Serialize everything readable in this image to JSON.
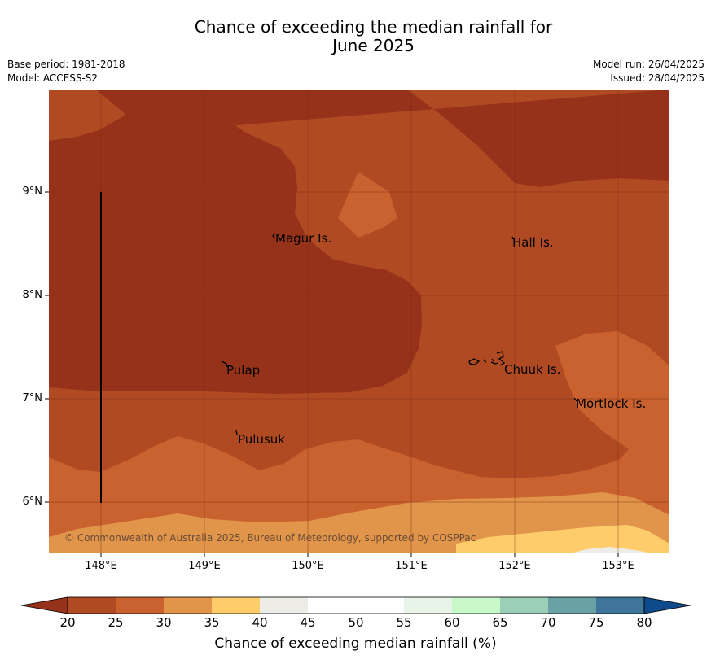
{
  "title": {
    "line1": "Chance of exceeding the median rainfall for",
    "line2": "June 2025"
  },
  "meta": {
    "base_period": "Base period: 1981-2018",
    "model": "Model: ACCESS-S2",
    "model_run": "Model run: 26/04/2025",
    "issued": "Issued: 28/04/2025"
  },
  "axes": {
    "lat_ticks": [
      "9°N",
      "8°N",
      "7°N",
      "6°N"
    ],
    "lon_ticks": [
      "148°E",
      "149°E",
      "150°E",
      "151°E",
      "152°E",
      "153°E"
    ]
  },
  "places": {
    "magur": "Magur Is.",
    "hall": "Hall Is.",
    "pulap": "Pulap",
    "chuuk": "Chuuk Is.",
    "mortlock": "Mortlock Is.",
    "pulusuk": "Pulusuk"
  },
  "copyright": "© Commonwealth of Australia 2025, Bureau of Meteorology, supported by COSPPac",
  "colorbar": {
    "label": "Chance of exceeding median rainfall (%)",
    "ticks": [
      "20",
      "25",
      "30",
      "35",
      "40",
      "45",
      "50",
      "55",
      "60",
      "65",
      "70",
      "75",
      "80"
    ],
    "colors": [
      "#b04a23",
      "#c9622f",
      "#e0954a",
      "#fecc6a",
      "#eeece6",
      "#ffffff",
      "#ffffff",
      "#e9f4e8",
      "#c8f8c8",
      "#9ccfb8",
      "#6aa1a4",
      "#3f7598"
    ],
    "under_color": "#963219",
    "over_color": "#0f4a8a"
  },
  "palette": {
    "darkest": "#963219",
    "dark": "#b04a23",
    "mid": "#c9622f",
    "light": "#e0954a",
    "yellow": "#fecc6a",
    "grey": "#eeece6"
  }
}
